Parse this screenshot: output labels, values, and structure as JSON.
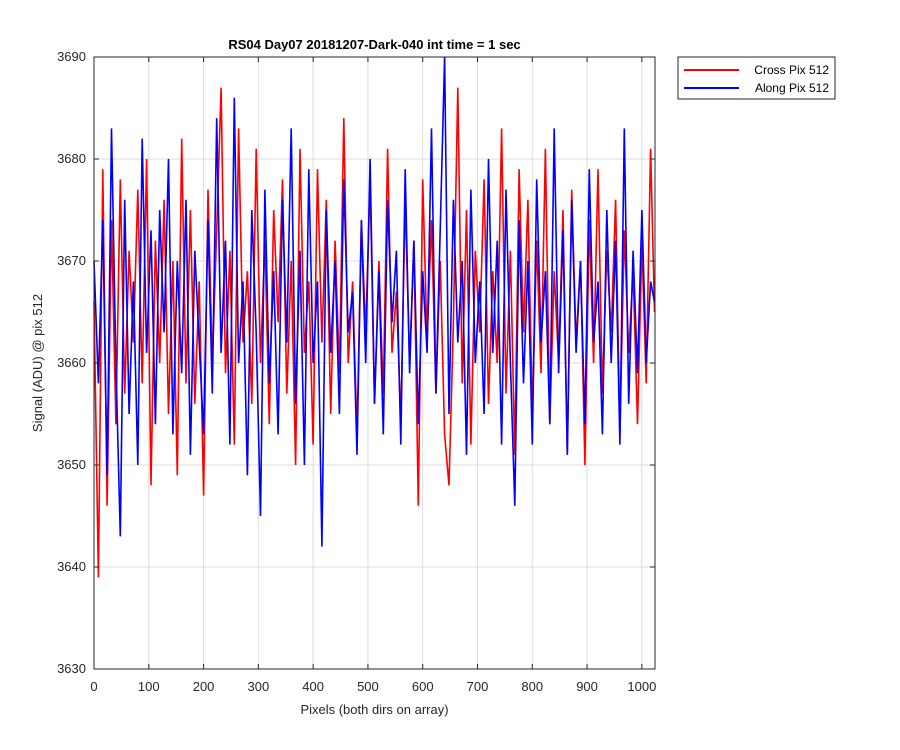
{
  "chart_data": {
    "type": "line",
    "title": "RS04 Day07 20181207-Dark-040 int time = 1 sec",
    "xlabel": "Pixels (both dirs on array)",
    "ylabel": "Signal (ADU) @ pix 512",
    "xlim": [
      0,
      1024
    ],
    "ylim": [
      3630,
      3690
    ],
    "xticks": [
      0,
      100,
      200,
      300,
      400,
      500,
      600,
      700,
      800,
      900,
      1000
    ],
    "yticks": [
      3630,
      3640,
      3650,
      3660,
      3670,
      3680,
      3690
    ],
    "grid": true,
    "legend_position": "outside-top-right",
    "series": [
      {
        "name": "Cross Pix 512",
        "color": "#ff0000",
        "x": [
          0,
          8,
          16,
          24,
          32,
          40,
          48,
          56,
          64,
          72,
          80,
          88,
          96,
          104,
          112,
          120,
          128,
          136,
          144,
          152,
          160,
          168,
          176,
          184,
          192,
          200,
          208,
          216,
          224,
          232,
          240,
          248,
          256,
          264,
          272,
          280,
          288,
          296,
          304,
          312,
          320,
          328,
          336,
          344,
          352,
          360,
          368,
          376,
          384,
          392,
          400,
          408,
          416,
          424,
          432,
          440,
          448,
          456,
          464,
          472,
          480,
          488,
          496,
          504,
          512,
          520,
          528,
          536,
          544,
          552,
          560,
          568,
          576,
          584,
          592,
          600,
          608,
          616,
          624,
          632,
          640,
          648,
          656,
          664,
          672,
          680,
          688,
          696,
          704,
          712,
          720,
          728,
          736,
          744,
          752,
          760,
          768,
          776,
          784,
          792,
          800,
          808,
          816,
          824,
          832,
          840,
          848,
          856,
          864,
          872,
          880,
          888,
          896,
          904,
          912,
          920,
          928,
          936,
          944,
          952,
          960,
          968,
          976,
          984,
          992,
          1000,
          1008,
          1016,
          1023
        ],
        "y": [
          3666,
          3639,
          3679,
          3646,
          3674,
          3654,
          3678,
          3657,
          3671,
          3662,
          3677,
          3658,
          3680,
          3648,
          3672,
          3660,
          3676,
          3655,
          3670,
          3649,
          3682,
          3658,
          3675,
          3656,
          3668,
          3647,
          3677,
          3660,
          3673,
          3687,
          3659,
          3671,
          3652,
          3683,
          3662,
          3669,
          3656,
          3681,
          3660,
          3672,
          3654,
          3675,
          3664,
          3678,
          3657,
          3670,
          3650,
          3681,
          3661,
          3668,
          3652,
          3679,
          3662,
          3676,
          3655,
          3672,
          3659,
          3684,
          3660,
          3668,
          3653,
          3674,
          3663,
          3678,
          3656,
          3670,
          3657,
          3681,
          3661,
          3667,
          3654,
          3676,
          3660,
          3672,
          3646,
          3678,
          3662,
          3674,
          3657,
          3670,
          3653,
          3648,
          3664,
          3687,
          3658,
          3675,
          3652,
          3671,
          3663,
          3678,
          3656,
          3669,
          3660,
          3683,
          3657,
          3671,
          3651,
          3679,
          3663,
          3676,
          3655,
          3672,
          3659,
          3681,
          3654,
          3669,
          3660,
          3675,
          3651,
          3677,
          3662,
          3670,
          3650,
          3674,
          3660,
          3679,
          3657,
          3671,
          3663,
          3676,
          3653,
          3673,
          3661,
          3669,
          3654,
          3672,
          3658,
          3681,
          3665
        ]
      },
      {
        "name": "Along Pix 512",
        "color": "#0000ff",
        "x": [
          0,
          8,
          16,
          24,
          32,
          40,
          48,
          56,
          64,
          72,
          80,
          88,
          96,
          104,
          112,
          120,
          128,
          136,
          144,
          152,
          160,
          168,
          176,
          184,
          192,
          200,
          208,
          216,
          224,
          232,
          240,
          248,
          256,
          264,
          272,
          280,
          288,
          296,
          304,
          312,
          320,
          328,
          336,
          344,
          352,
          360,
          368,
          376,
          384,
          392,
          400,
          408,
          416,
          424,
          432,
          440,
          448,
          456,
          464,
          472,
          480,
          488,
          496,
          504,
          512,
          520,
          528,
          536,
          544,
          552,
          560,
          568,
          576,
          584,
          592,
          600,
          608,
          616,
          624,
          632,
          640,
          648,
          656,
          664,
          672,
          680,
          688,
          696,
          704,
          712,
          720,
          728,
          736,
          744,
          752,
          760,
          768,
          776,
          784,
          792,
          800,
          808,
          816,
          824,
          832,
          840,
          848,
          856,
          864,
          872,
          880,
          888,
          896,
          904,
          912,
          920,
          928,
          936,
          944,
          952,
          960,
          968,
          976,
          984,
          992,
          1000,
          1008,
          1016,
          1023
        ],
        "y": [
          3670,
          3658,
          3674,
          3649,
          3683,
          3660,
          3643,
          3676,
          3655,
          3668,
          3650,
          3682,
          3661,
          3673,
          3654,
          3675,
          3663,
          3680,
          3653,
          3670,
          3659,
          3676,
          3651,
          3671,
          3662,
          3653,
          3674,
          3657,
          3684,
          3661,
          3672,
          3652,
          3686,
          3660,
          3668,
          3649,
          3675,
          3663,
          3645,
          3677,
          3658,
          3669,
          3653,
          3676,
          3662,
          3683,
          3656,
          3671,
          3650,
          3679,
          3660,
          3668,
          3642,
          3675,
          3661,
          3670,
          3655,
          3678,
          3663,
          3667,
          3651,
          3674,
          3660,
          3680,
          3656,
          3669,
          3653,
          3676,
          3664,
          3671,
          3652,
          3679,
          3659,
          3672,
          3654,
          3669,
          3661,
          3683,
          3657,
          3673,
          3690,
          3655,
          3676,
          3662,
          3670,
          3651,
          3677,
          3660,
          3668,
          3655,
          3680,
          3661,
          3672,
          3652,
          3677,
          3660,
          3646,
          3674,
          3658,
          3670,
          3652,
          3678,
          3662,
          3669,
          3654,
          3683,
          3659,
          3673,
          3651,
          3676,
          3661,
          3670,
          3654,
          3679,
          3662,
          3668,
          3653,
          3675,
          3660,
          3672,
          3652,
          3683,
          3656,
          3671,
          3659,
          3675,
          3660,
          3668,
          3666
        ]
      }
    ]
  }
}
